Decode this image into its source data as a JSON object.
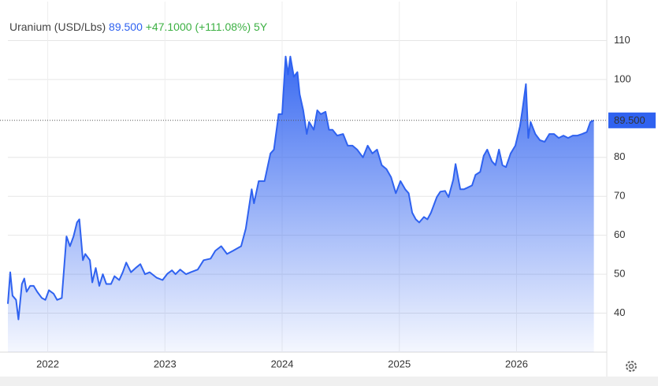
{
  "chart_data": {
    "type": "area",
    "title": "Uranium (USD/Lbs)",
    "last_value": {
      "value": 89.5,
      "label": "89.500"
    },
    "change": "+47.1000",
    "change_pct": "(+111.08%)",
    "period": "5Y",
    "color": "#2f62f0",
    "grid": true,
    "xlim": [
      2021.66,
      2026.77
    ],
    "xticks": [
      2022,
      2023,
      2024,
      2025,
      2026
    ],
    "ylim": [
      30,
      120
    ],
    "yticks": [
      40,
      50,
      60,
      70,
      80,
      100,
      110
    ],
    "x": [
      2021.66,
      2021.68,
      2021.7,
      2021.73,
      2021.75,
      2021.78,
      2021.8,
      2021.82,
      2021.85,
      2021.88,
      2021.91,
      2021.95,
      2021.98,
      2022.01,
      2022.05,
      2022.08,
      2022.12,
      2022.16,
      2022.19,
      2022.22,
      2022.25,
      2022.27,
      2022.3,
      2022.32,
      2022.36,
      2022.38,
      2022.41,
      2022.44,
      2022.47,
      2022.5,
      2022.54,
      2022.57,
      2022.61,
      2022.64,
      2022.67,
      2022.71,
      2022.75,
      2022.79,
      2022.83,
      2022.87,
      2022.93,
      2022.98,
      2023.02,
      2023.06,
      2023.09,
      2023.13,
      2023.18,
      2023.22,
      2023.28,
      2023.33,
      2023.39,
      2023.43,
      2023.48,
      2023.53,
      2023.58,
      2023.65,
      2023.69,
      2023.74,
      2023.76,
      2023.8,
      2023.85,
      2023.9,
      2023.93,
      2023.97,
      2024.0,
      2024.03,
      2024.05,
      2024.07,
      2024.1,
      2024.13,
      2024.15,
      2024.18,
      2024.21,
      2024.23,
      2024.27,
      2024.3,
      2024.33,
      2024.37,
      2024.4,
      2024.43,
      2024.47,
      2024.52,
      2024.56,
      2024.6,
      2024.64,
      2024.69,
      2024.73,
      2024.77,
      2024.81,
      2024.85,
      2024.89,
      2024.93,
      2024.97,
      2025.01,
      2025.05,
      2025.08,
      2025.11,
      2025.14,
      2025.17,
      2025.21,
      2025.24,
      2025.27,
      2025.32,
      2025.35,
      2025.39,
      2025.42,
      2025.46,
      2025.48,
      2025.52,
      2025.55,
      2025.58,
      2025.62,
      2025.65,
      2025.69,
      2025.72,
      2025.75,
      2025.79,
      2025.82,
      2025.85,
      2025.88,
      2025.91,
      2025.95,
      2025.99,
      2026.03,
      2026.05,
      2026.08,
      2026.1,
      2026.12,
      2026.16,
      2026.2,
      2026.24,
      2026.28,
      2026.32,
      2026.36,
      2026.4,
      2026.44,
      2026.48,
      2026.52,
      2026.56,
      2026.6,
      2026.63,
      2026.66
    ],
    "values": [
      42.4,
      50.5,
      44.5,
      43.4,
      38.4,
      47.5,
      48.9,
      45.5,
      47,
      47,
      45.5,
      43.9,
      43.4,
      45.9,
      45,
      43.4,
      43.9,
      59.7,
      57.2,
      59.7,
      63.3,
      64.1,
      53.6,
      55.2,
      53.6,
      47.9,
      51.6,
      47,
      50,
      47.5,
      47.5,
      49.5,
      48.5,
      50.5,
      53,
      50.5,
      51.6,
      52.6,
      50,
      50.5,
      49.1,
      48.5,
      50.1,
      51,
      50,
      51.2,
      50,
      50.5,
      51.2,
      53.6,
      54,
      56,
      57.2,
      55.2,
      56,
      57.2,
      61.7,
      71.8,
      68.2,
      73.9,
      73.9,
      81,
      82,
      91.1,
      91.1,
      105.9,
      101.3,
      105.9,
      100.7,
      101.9,
      96.2,
      92.1,
      86,
      89.1,
      87.1,
      92.1,
      91.1,
      91.7,
      87.1,
      87.1,
      85.6,
      86,
      83,
      83,
      82,
      80,
      83,
      81,
      82,
      78,
      77,
      74.9,
      70.8,
      73.9,
      71.8,
      70.8,
      65.8,
      64.1,
      63.3,
      64.7,
      64.1,
      65.8,
      69.8,
      71.2,
      71.4,
      69.8,
      74.3,
      78.3,
      71.8,
      71.8,
      72.2,
      72.8,
      75.5,
      76.3,
      80.4,
      82,
      79,
      78,
      82,
      78,
      77.5,
      81,
      83,
      88,
      92.1,
      98.8,
      85,
      89.1,
      86,
      84.4,
      84,
      86,
      86,
      85,
      85.6,
      85,
      85.6,
      85.6,
      86,
      86.5,
      89.1,
      89.5
    ]
  }
}
